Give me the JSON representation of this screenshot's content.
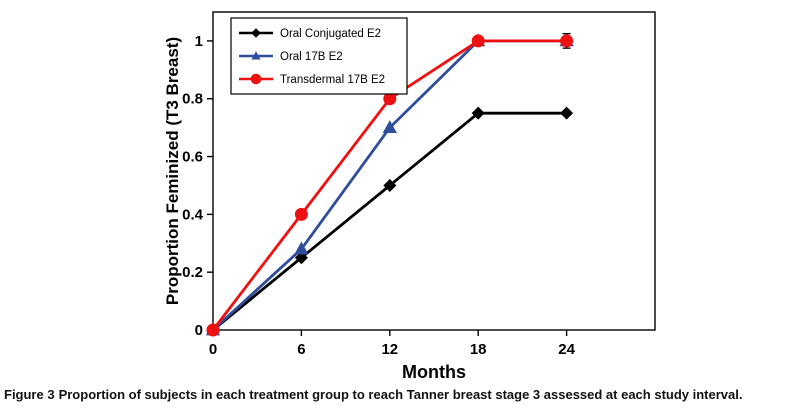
{
  "figure": {
    "caption_prefix": "Figure 3",
    "caption_text": "Proportion of subjects in each treatment group to reach Tanner breast stage 3 assessed at each study interval."
  },
  "chart_data": {
    "type": "line",
    "title": "",
    "xlabel": "Months",
    "ylabel": "Proportion Feminized (T3 Breast)",
    "x": [
      0,
      6,
      12,
      18,
      24
    ],
    "xticks": [
      0,
      6,
      12,
      18,
      24
    ],
    "yticks": [
      0,
      0.2,
      0.4,
      0.6,
      0.8,
      1
    ],
    "xlim": [
      0,
      30
    ],
    "ylim": [
      0,
      1.1
    ],
    "grid": false,
    "legend_position": "top-left",
    "axis_color": "#000000",
    "series": [
      {
        "name": "Oral Conjugated E2",
        "color": "#000000",
        "marker": "diamond",
        "values": [
          0,
          0.25,
          0.5,
          0.75,
          0.75
        ]
      },
      {
        "name": "Oral 17B E2",
        "color": "#2e4d9b",
        "marker": "triangle",
        "values": [
          0,
          0.28,
          0.7,
          1,
          1
        ]
      },
      {
        "name": "Transdermal 17B E2",
        "color": "#ee1111",
        "marker": "circle",
        "values": [
          0,
          0.4,
          0.8,
          1,
          1
        ]
      }
    ],
    "error_bars": [
      {
        "x": 24,
        "y": 1.0,
        "half": 0.025
      }
    ]
  }
}
